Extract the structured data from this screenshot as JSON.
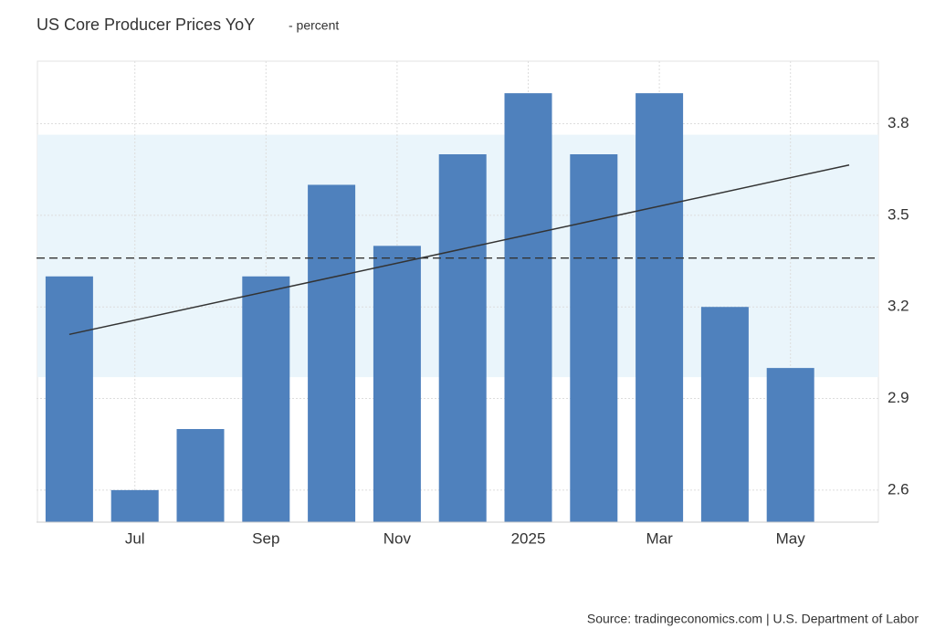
{
  "chart_data": {
    "type": "bar",
    "title": "US Core Producer Prices YoY",
    "subtitle": "- percent",
    "categories": [
      null,
      "Jul",
      null,
      "Sep",
      null,
      "Nov",
      null,
      "2025",
      null,
      "Mar",
      null,
      "May"
    ],
    "values": [
      3.3,
      2.6,
      2.8,
      3.3,
      3.6,
      3.4,
      3.7,
      3.9,
      3.7,
      3.9,
      3.2,
      3.0
    ],
    "color": "#4f81bd",
    "ylim": [
      2.495,
      4.005
    ],
    "yticks": [
      2.6,
      2.9,
      3.2,
      3.5,
      3.8
    ],
    "grid": true,
    "mean": 3.36,
    "band": [
      2.97,
      3.764
    ],
    "trend": [
      3.11,
      3.665
    ],
    "source": "Source: tradingeconomics.com | U.S. Department of Labor"
  }
}
